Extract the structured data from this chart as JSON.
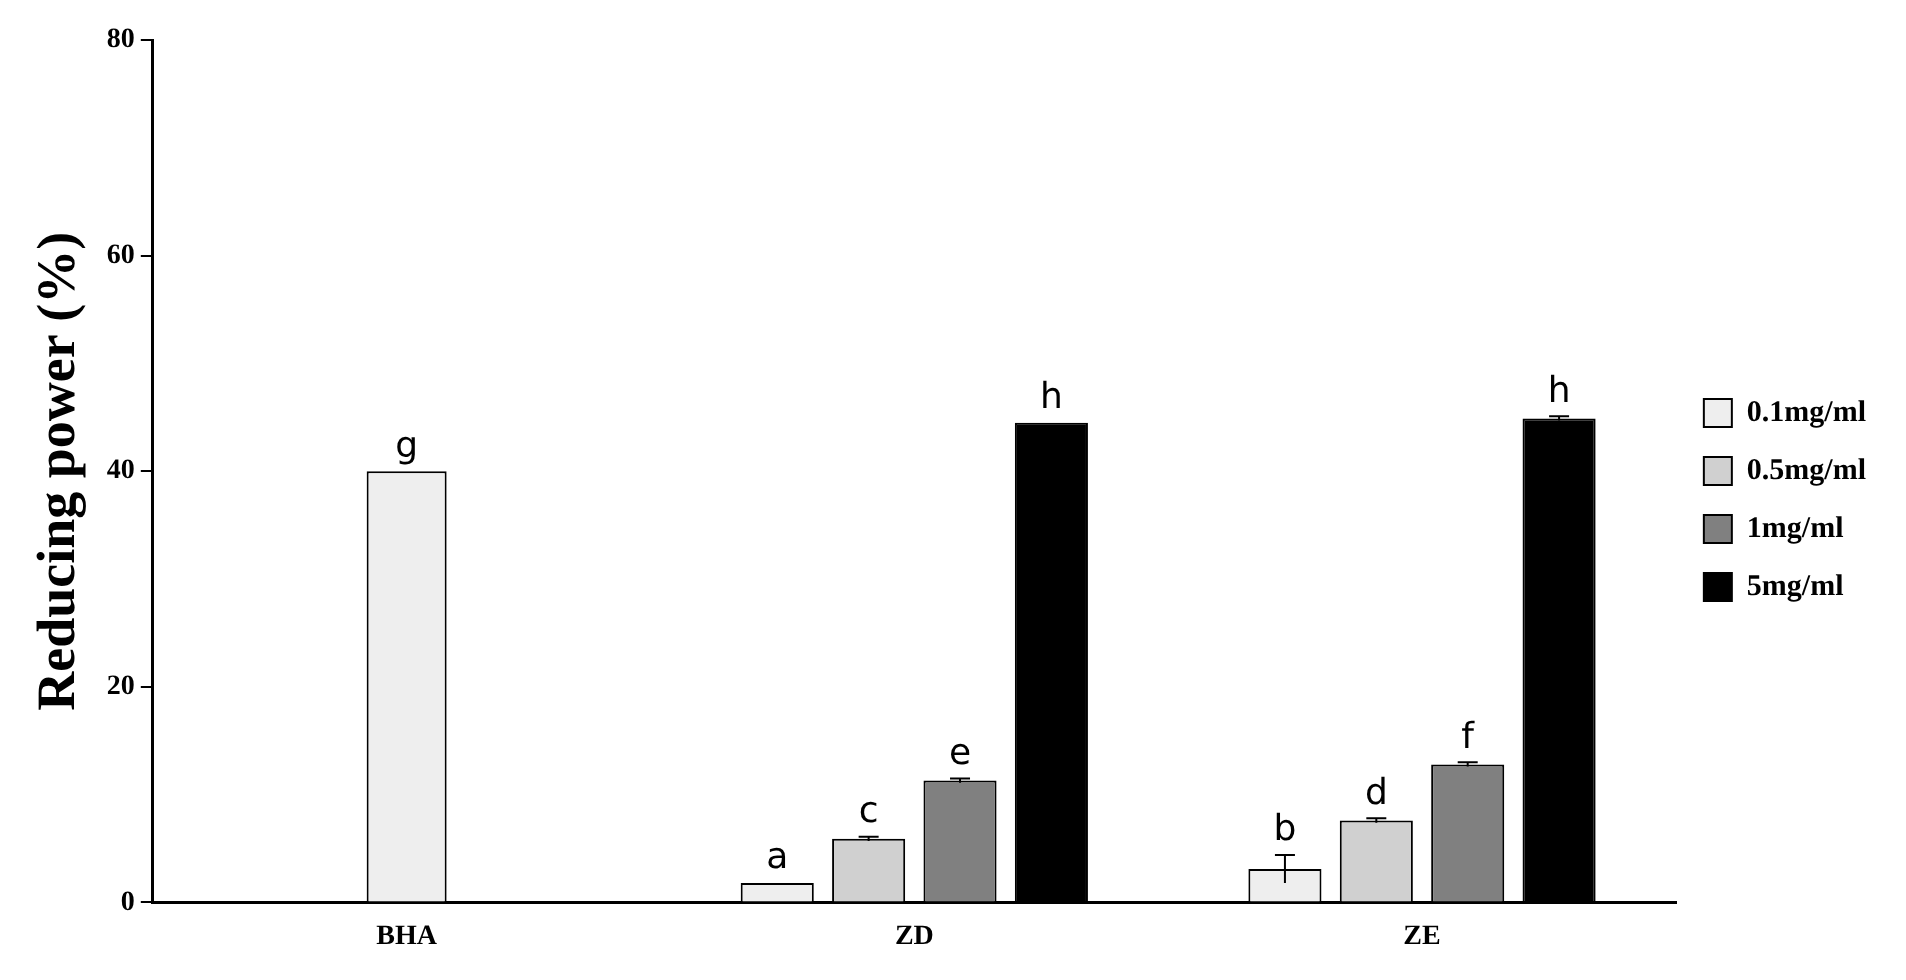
{
  "chart_data": {
    "type": "bar",
    "ylabel": "Reducing power (%)",
    "categories": [
      "BHA",
      "ZD",
      "ZE"
    ],
    "series": [
      {
        "name": "0.1mg/ml",
        "color": "#eeeeee",
        "values": [
          40,
          1.8,
          3.1
        ],
        "errors": [
          null,
          null,
          1.3
        ],
        "value_labels": [
          "g",
          "a",
          "b"
        ]
      },
      {
        "name": "0.5mg/ml",
        "color": "#d0d0d0",
        "values": [
          null,
          5.9,
          7.6
        ],
        "errors": [
          null,
          0.2,
          0.2
        ],
        "value_labels": [
          null,
          "c",
          "d"
        ]
      },
      {
        "name": "1mg/ml",
        "color": "#808080",
        "values": [
          null,
          11.3,
          12.8
        ],
        "errors": [
          null,
          0.2,
          0.2
        ],
        "value_labels": [
          null,
          "e",
          "f"
        ]
      },
      {
        "name": "5mg/ml",
        "color": "#000000",
        "values": [
          null,
          44.5,
          44.9
        ],
        "errors": [
          null,
          null,
          0.2
        ],
        "value_labels": [
          null,
          "h",
          "h"
        ]
      }
    ],
    "ylim": [
      0,
      80
    ],
    "yticks": [
      0,
      20,
      40,
      60,
      80
    ],
    "grid": false,
    "legend": "right"
  }
}
